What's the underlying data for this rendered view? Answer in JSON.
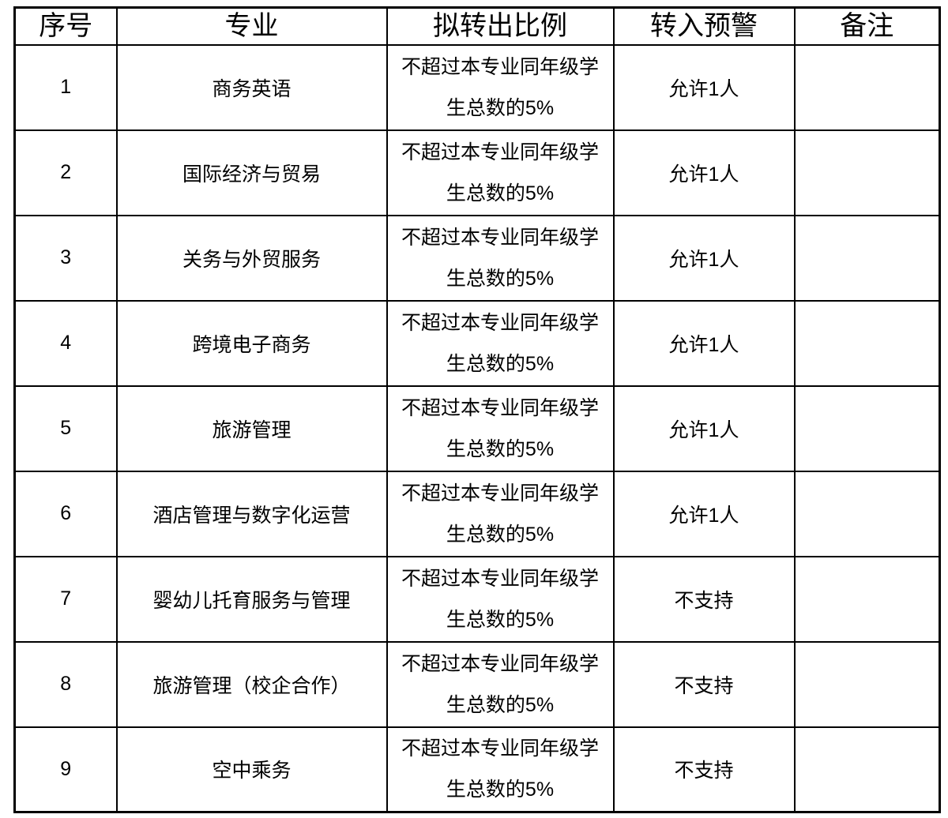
{
  "colors": {
    "background": "#ffffff",
    "border": "#000000",
    "text": "#000000"
  },
  "table": {
    "name": "major-transfer-quota-table",
    "columns": [
      {
        "key": "index",
        "label": "序号"
      },
      {
        "key": "major",
        "label": "专业"
      },
      {
        "key": "ratio",
        "label": "拟转出比例"
      },
      {
        "key": "warning",
        "label": "转入预警"
      },
      {
        "key": "remark",
        "label": "备注"
      }
    ],
    "rows": [
      {
        "index": "1",
        "major": "商务英语",
        "ratio": "不超过本专业同年级学生总数的5%",
        "warning": "允许1人",
        "remark": ""
      },
      {
        "index": "2",
        "major": "国际经济与贸易",
        "ratio": "不超过本专业同年级学生总数的5%",
        "warning": "允许1人",
        "remark": ""
      },
      {
        "index": "3",
        "major": "关务与外贸服务",
        "ratio": "不超过本专业同年级学生总数的5%",
        "warning": "允许1人",
        "remark": ""
      },
      {
        "index": "4",
        "major": "跨境电子商务",
        "ratio": "不超过本专业同年级学生总数的5%",
        "warning": "允许1人",
        "remark": ""
      },
      {
        "index": "5",
        "major": "旅游管理",
        "ratio": "不超过本专业同年级学生总数的5%",
        "warning": "允许1人",
        "remark": ""
      },
      {
        "index": "6",
        "major": "酒店管理与数字化运营",
        "ratio": "不超过本专业同年级学生总数的5%",
        "warning": "允许1人",
        "remark": ""
      },
      {
        "index": "7",
        "major": "婴幼儿托育服务与管理",
        "ratio": "不超过本专业同年级学生总数的5%",
        "warning": "不支持",
        "remark": ""
      },
      {
        "index": "8",
        "major": "旅游管理（校企合作）",
        "ratio": "不超过本专业同年级学生总数的5%",
        "warning": "不支持",
        "remark": ""
      },
      {
        "index": "9",
        "major": "空中乘务",
        "ratio": "不超过本专业同年级学生总数的5%",
        "warning": "不支持",
        "remark": ""
      }
    ]
  }
}
